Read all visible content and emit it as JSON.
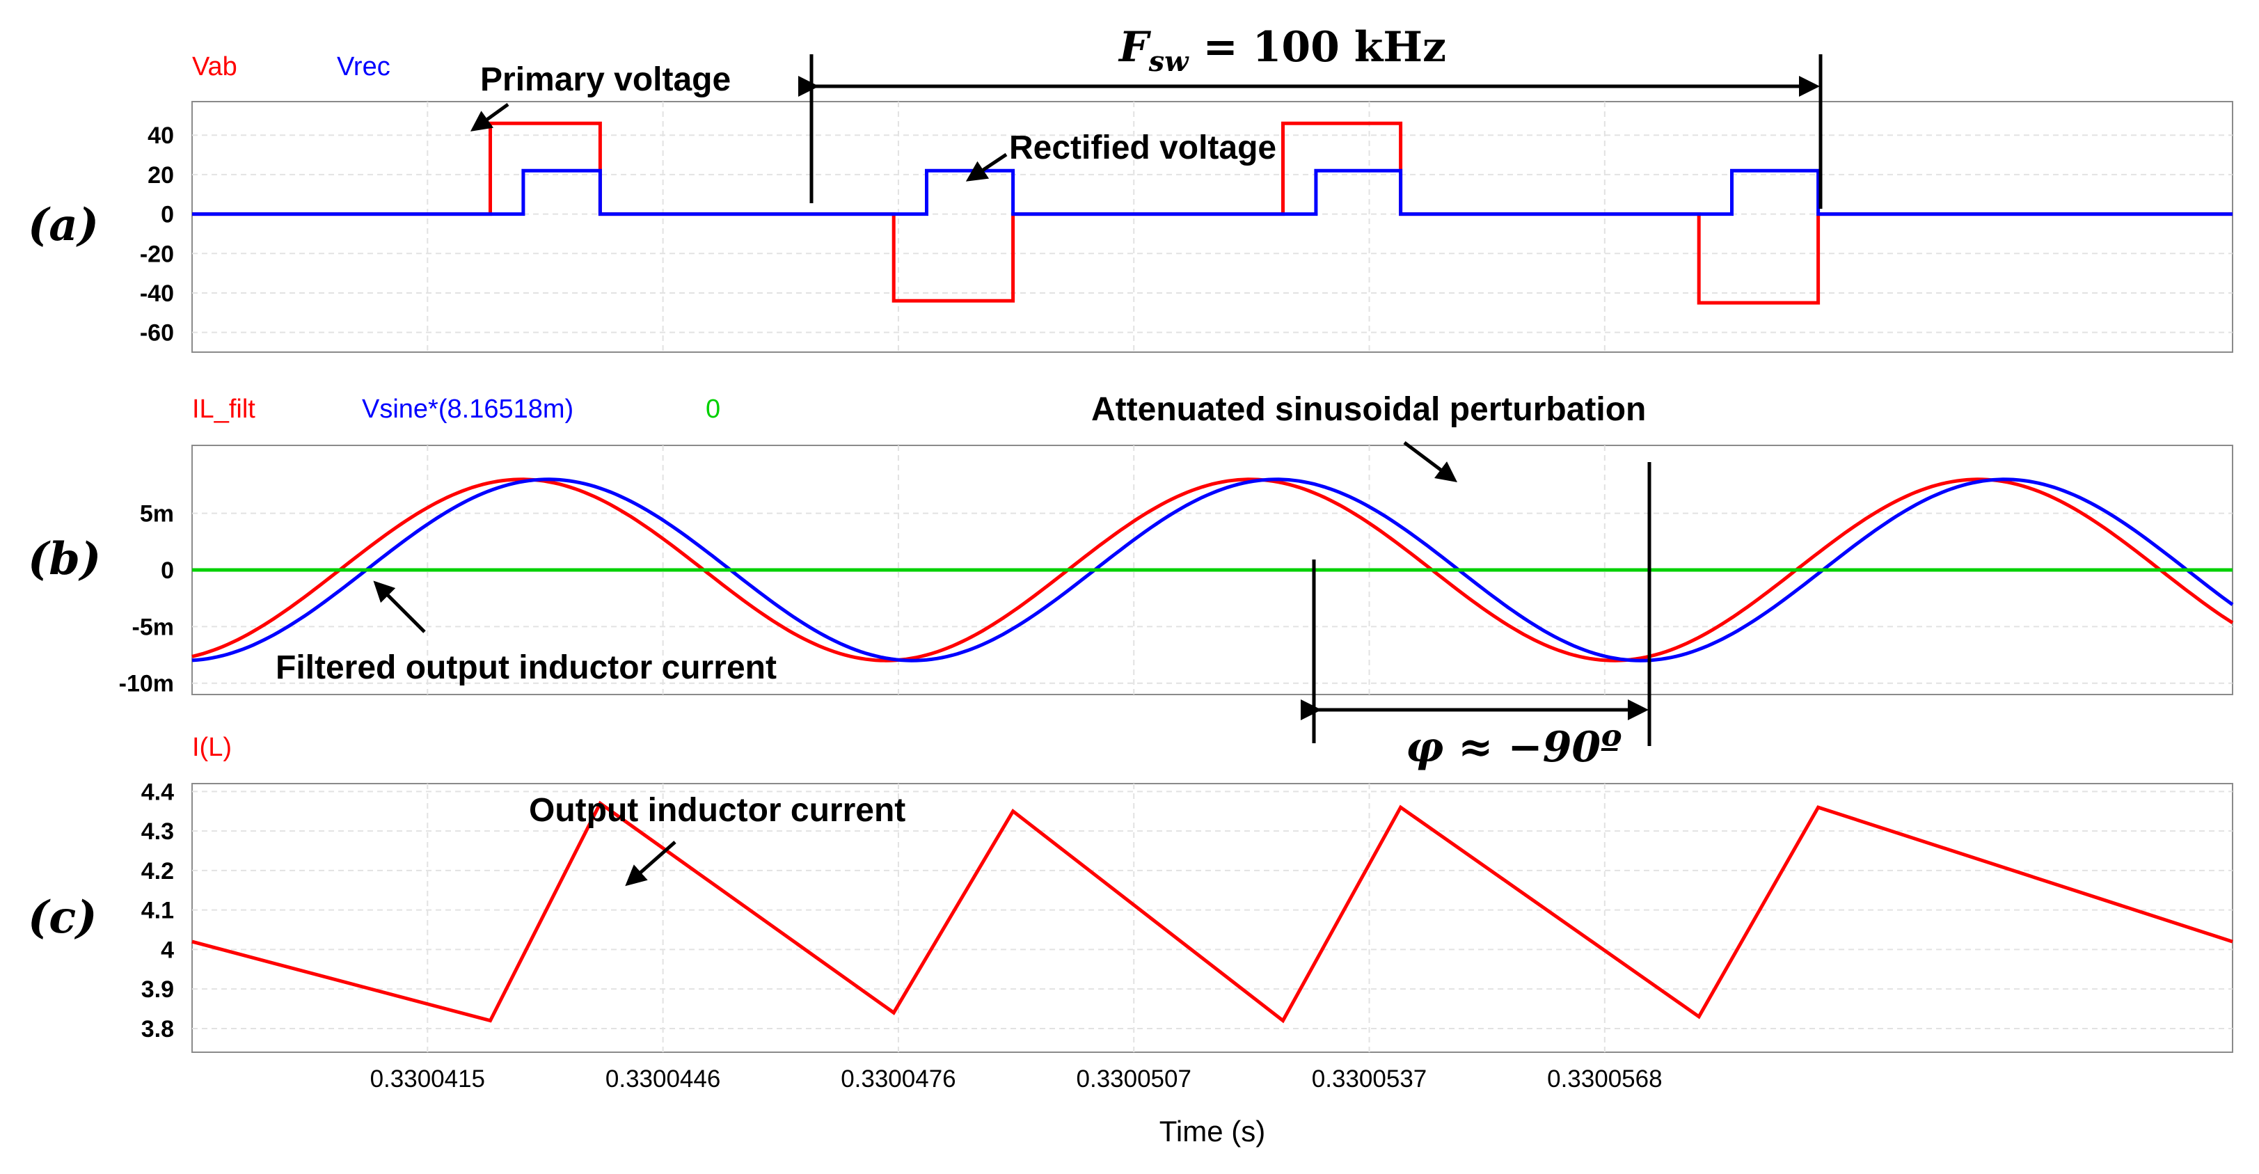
{
  "chart_data": [
    {
      "panel": "(a)",
      "type": "line",
      "legend": [
        "Vab",
        "Vrec"
      ],
      "yticks": [
        "40",
        "20",
        "0",
        "-20",
        "-40",
        "-60"
      ],
      "ylim": [
        -70,
        57
      ],
      "series": [
        {
          "name": "Vab",
          "color": "#ff0000",
          "x": [
            0,
            0.19,
            0.19,
            0.26,
            0.26,
            0.447,
            0.447,
            0.523,
            0.523,
            0.695,
            0.695,
            0.77,
            0.77,
            0.96,
            0.96,
            1.036,
            1.036,
            1.3
          ],
          "y": [
            0,
            0,
            46,
            46,
            0,
            0,
            -44,
            -44,
            0,
            0,
            46,
            46,
            0,
            0,
            -45,
            -45,
            0,
            0
          ]
        },
        {
          "name": "Vrec",
          "color": "#0000ff",
          "x": [
            0,
            0.211,
            0.211,
            0.26,
            0.26,
            0.468,
            0.468,
            0.523,
            0.523,
            0.716,
            0.716,
            0.77,
            0.77,
            0.981,
            0.981,
            1.036,
            1.036,
            1.3
          ],
          "y": [
            0,
            0,
            22,
            22,
            0,
            0,
            22,
            22,
            0,
            0,
            22,
            22,
            0,
            0,
            22,
            22,
            0,
            0
          ]
        }
      ],
      "annotations": {
        "primary": "Primary voltage",
        "rectified": "Rectified voltage",
        "fsw_prefix": "F",
        "fsw_sub": "sw",
        "fsw_value": " = 100 kHz"
      }
    },
    {
      "panel": "(b)",
      "type": "line",
      "legend": [
        "IL_filt",
        "Vsine*(8.16518m)",
        "0"
      ],
      "yticks": [
        "5m",
        "0",
        "-5m",
        "-10m"
      ],
      "ylim": [
        -11,
        11
      ],
      "series": [
        {
          "name": "IL_filt",
          "color": "#ff0000",
          "amplitude": 8.0,
          "phase_zero_x": 0.094,
          "period": 0.464
        },
        {
          "name": "Vsine*(8.16518m)",
          "color": "#0000ff",
          "amplitude": 8.0,
          "phase_zero_x": 0.575,
          "period": 0.464
        },
        {
          "name": "0",
          "color": "#00d000",
          "constant": 0
        }
      ],
      "annotations": {
        "attenuated": "Attenuated sinusoidal perturbation",
        "filtered": "Filtered output inductor current",
        "phi": "φ ≈ −90º"
      }
    },
    {
      "panel": "(c)",
      "type": "line",
      "legend": [
        "I(L)"
      ],
      "yticks": [
        "4.4",
        "4.3",
        "4.2",
        "4.1",
        "4",
        "3.9",
        "3.8"
      ],
      "ylim": [
        3.74,
        4.42
      ],
      "series": [
        {
          "name": "I(L)",
          "color": "#ff0000",
          "x": [
            0,
            0.19,
            0.26,
            0.447,
            0.523,
            0.695,
            0.77,
            0.96,
            1.036,
            1.3
          ],
          "y": [
            4.02,
            3.82,
            4.37,
            3.84,
            4.35,
            3.82,
            4.36,
            3.83,
            4.36,
            4.02
          ]
        }
      ],
      "annotations": {
        "output": "Output inductor current"
      }
    }
  ],
  "xaxis": {
    "ticks": [
      "0.3300415",
      "0.3300446",
      "0.3300476",
      "0.3300507",
      "0.3300537",
      "0.3300568"
    ],
    "tick_values": [
      0.15,
      0.3,
      0.45,
      0.6,
      0.75,
      0.9
    ],
    "xlim": [
      0,
      1.3
    ],
    "label": "Time (s)"
  },
  "labels": {
    "a": "(a)",
    "b": "(b)",
    "c": "(c)"
  }
}
